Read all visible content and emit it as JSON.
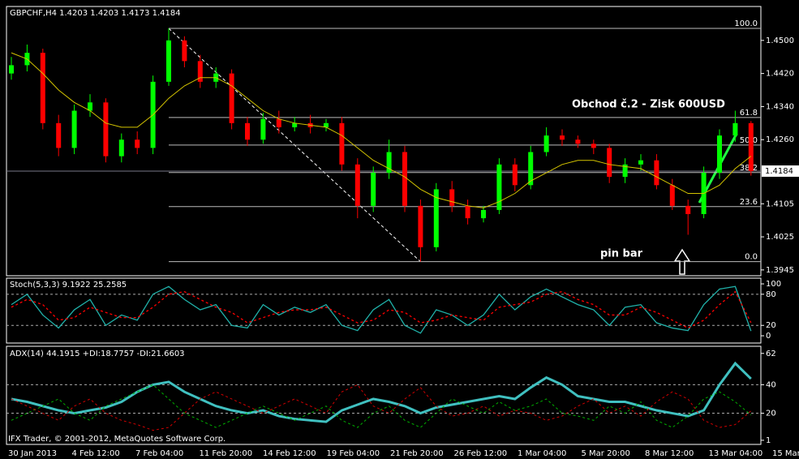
{
  "chart_data": [
    {
      "type": "candlestick",
      "title": "GBPCHF,H4  1.4203 1.4203 1.4173 1.4184",
      "annotations": [
        "Obchod č.2 - Zisk 600USD",
        "pin bar"
      ],
      "ylim": [
        1.3931,
        1.4582
      ],
      "yticks": [
        {
          "value": 1.45,
          "label": "1.4500"
        },
        {
          "value": 1.442,
          "label": "1.4420"
        },
        {
          "value": 1.434,
          "label": "1.4340"
        },
        {
          "value": 1.426,
          "label": "1.4260"
        },
        {
          "value": 1.4105,
          "label": "1.4105"
        },
        {
          "value": 1.4025,
          "label": "1.4025"
        },
        {
          "value": 1.3945,
          "label": "1.3945"
        }
      ],
      "current_price": 1.4184,
      "up_color": "#00ff00",
      "down_color": "#ff0000",
      "open": [
        1.442,
        1.444,
        1.447,
        1.43,
        1.424,
        1.433,
        1.435,
        1.422,
        1.426,
        1.424,
        1.44,
        1.45,
        1.445,
        1.44,
        1.442,
        1.43,
        1.426,
        1.431,
        1.429,
        1.43,
        1.429,
        1.43,
        1.42,
        1.41,
        1.418,
        1.423,
        1.41,
        1.4,
        1.414,
        1.41,
        1.407,
        1.409,
        1.42,
        1.415,
        1.423,
        1.427,
        1.426,
        1.425,
        1.424,
        1.417,
        1.42,
        1.421,
        1.415,
        1.41,
        1.408,
        1.418,
        1.427,
        1.43
      ],
      "high": [
        1.446,
        1.449,
        1.448,
        1.432,
        1.4345,
        1.437,
        1.436,
        1.4275,
        1.428,
        1.4415,
        1.4529,
        1.451,
        1.4465,
        1.4435,
        1.443,
        1.4315,
        1.4325,
        1.433,
        1.4315,
        1.432,
        1.431,
        1.4315,
        1.4215,
        1.4195,
        1.426,
        1.4245,
        1.4115,
        1.4155,
        1.416,
        1.4115,
        1.41,
        1.4215,
        1.4215,
        1.4245,
        1.429,
        1.4285,
        1.427,
        1.426,
        1.425,
        1.4215,
        1.4225,
        1.4225,
        1.4165,
        1.4115,
        1.4195,
        1.4285,
        1.433,
        1.4305
      ],
      "low": [
        1.4405,
        1.4425,
        1.4285,
        1.422,
        1.4225,
        1.4315,
        1.4205,
        1.4205,
        1.4225,
        1.4225,
        1.439,
        1.4435,
        1.4385,
        1.4385,
        1.4285,
        1.4245,
        1.425,
        1.4275,
        1.428,
        1.4275,
        1.428,
        1.4185,
        1.407,
        1.4085,
        1.4165,
        1.4085,
        1.3965,
        1.399,
        1.4085,
        1.4055,
        1.406,
        1.408,
        1.4135,
        1.414,
        1.422,
        1.4245,
        1.424,
        1.4225,
        1.4155,
        1.4155,
        1.4185,
        1.414,
        1.409,
        1.403,
        1.407,
        1.4165,
        1.4255,
        1.4173
      ],
      "close": [
        1.444,
        1.447,
        1.43,
        1.424,
        1.433,
        1.435,
        1.422,
        1.426,
        1.424,
        1.44,
        1.45,
        1.445,
        1.44,
        1.442,
        1.43,
        1.426,
        1.431,
        1.429,
        1.43,
        1.429,
        1.43,
        1.42,
        1.41,
        1.418,
        1.423,
        1.41,
        1.4,
        1.414,
        1.41,
        1.407,
        1.409,
        1.42,
        1.415,
        1.423,
        1.427,
        1.426,
        1.425,
        1.424,
        1.417,
        1.42,
        1.421,
        1.415,
        1.41,
        1.408,
        1.418,
        1.427,
        1.43,
        1.4184
      ],
      "ma": {
        "color": "#d4c400",
        "values": [
          1.447,
          1.4455,
          1.442,
          1.438,
          1.435,
          1.433,
          1.43,
          1.429,
          1.429,
          1.432,
          1.436,
          1.439,
          1.441,
          1.441,
          1.439,
          1.436,
          1.433,
          1.431,
          1.43,
          1.4295,
          1.429,
          1.427,
          1.424,
          1.421,
          1.419,
          1.417,
          1.414,
          1.412,
          1.411,
          1.41,
          1.4095,
          1.411,
          1.413,
          1.416,
          1.418,
          1.42,
          1.421,
          1.421,
          1.42,
          1.4195,
          1.419,
          1.417,
          1.415,
          1.413,
          1.413,
          1.415,
          1.419,
          1.422
        ]
      },
      "fib": {
        "high": 1.4529,
        "low": 1.3965,
        "levels": [
          {
            "value": 100,
            "label": "100.0"
          },
          {
            "value": 61.8,
            "label": "61.8"
          },
          {
            "value": 50,
            "label": "50.0"
          },
          {
            "value": 38.2,
            "label": "38.2"
          },
          {
            "value": 23.6,
            "label": "23.6"
          },
          {
            "value": 0,
            "label": "0.0"
          }
        ]
      },
      "x_labels": [
        "30 Jan 2013",
        "4 Feb 12:00",
        "7 Feb 04:00",
        "11 Feb 20:00",
        "14 Feb 12:00",
        "19 Feb 04:00",
        "21 Feb 20:00",
        "26 Feb 12:00",
        "1 Mar 04:00",
        "5 Mar 20:00",
        "8 Mar 12:00",
        "13 Mar 04:00",
        "15 Mar 20:00"
      ]
    },
    {
      "type": "line",
      "title": "Stoch(5,3,3) 9.1922 25.2585",
      "ylim": [
        -14,
        111
      ],
      "yticks": [
        100,
        80,
        20,
        0
      ],
      "levels": [
        80,
        20
      ],
      "series": [
        {
          "name": "%K",
          "color": "#20b2aa",
          "dash": false,
          "values": [
            60,
            80,
            40,
            15,
            50,
            70,
            20,
            40,
            30,
            80,
            95,
            70,
            50,
            60,
            20,
            15,
            60,
            40,
            55,
            45,
            60,
            20,
            10,
            50,
            70,
            20,
            5,
            50,
            40,
            20,
            40,
            80,
            50,
            75,
            90,
            75,
            60,
            50,
            20,
            55,
            60,
            25,
            15,
            10,
            60,
            90,
            95,
            9.1922
          ]
        },
        {
          "name": "%D",
          "color": "#ff0000",
          "dash": true,
          "values": [
            55,
            70,
            60,
            30,
            35,
            55,
            45,
            35,
            35,
            55,
            80,
            85,
            70,
            55,
            45,
            25,
            35,
            45,
            50,
            50,
            55,
            40,
            25,
            30,
            50,
            45,
            25,
            30,
            40,
            35,
            30,
            55,
            60,
            65,
            80,
            85,
            70,
            60,
            40,
            40,
            55,
            45,
            30,
            15,
            30,
            60,
            85,
            25.2585
          ]
        }
      ]
    },
    {
      "type": "line",
      "title": "ADX(14) 44.1915 +DI:18.7757 -DI:21.6603",
      "footer": "IFX Trader, © 2001-2012, MetaQuotes Software Corp.",
      "ylim": [
        -1.9,
        67
      ],
      "yticks": [
        62,
        40,
        20,
        1
      ],
      "levels": [
        40,
        20
      ],
      "series": [
        {
          "name": "ADX",
          "color": "#40c0c0",
          "dash": false,
          "width": 3,
          "values": [
            30,
            28,
            25,
            22,
            20,
            22,
            24,
            28,
            35,
            40,
            42,
            35,
            30,
            25,
            22,
            20,
            22,
            18,
            16,
            15,
            14,
            22,
            26,
            30,
            28,
            25,
            20,
            24,
            26,
            28,
            30,
            32,
            30,
            38,
            45,
            40,
            32,
            30,
            28,
            28,
            25,
            22,
            20,
            18,
            22,
            40,
            55,
            44.1915
          ]
        },
        {
          "name": "+DI",
          "color": "#00b000",
          "dash": true,
          "width": 1,
          "values": [
            15,
            20,
            25,
            30,
            20,
            15,
            25,
            30,
            35,
            40,
            30,
            20,
            15,
            10,
            15,
            20,
            25,
            20,
            15,
            20,
            25,
            15,
            10,
            20,
            25,
            15,
            10,
            20,
            30,
            25,
            20,
            28,
            22,
            25,
            30,
            20,
            18,
            15,
            25,
            20,
            28,
            15,
            10,
            18,
            30,
            35,
            28,
            18.7757
          ]
        },
        {
          "name": "-DI",
          "color": "#d00000",
          "dash": true,
          "width": 1,
          "values": [
            30,
            25,
            20,
            15,
            25,
            30,
            20,
            15,
            12,
            8,
            10,
            20,
            30,
            35,
            30,
            25,
            20,
            25,
            30,
            25,
            20,
            35,
            40,
            25,
            20,
            30,
            38,
            25,
            18,
            20,
            25,
            18,
            22,
            20,
            15,
            18,
            25,
            30,
            20,
            25,
            18,
            28,
            35,
            30,
            15,
            10,
            12,
            21.6603
          ]
        }
      ]
    }
  ]
}
